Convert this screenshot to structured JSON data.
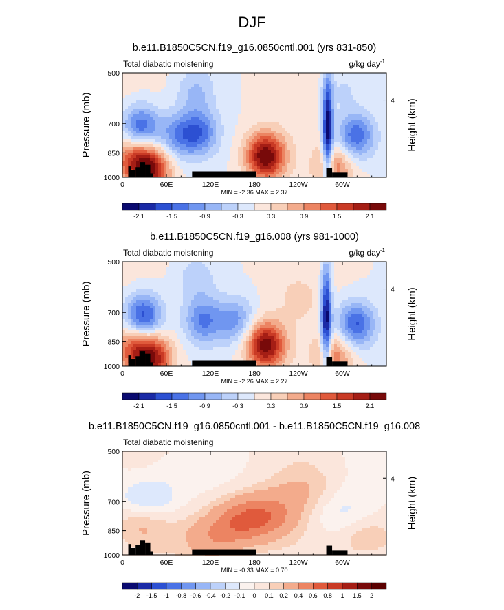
{
  "figure": {
    "title": "DJF"
  },
  "chart_data": [
    {
      "type": "heatmap",
      "title": "b.e11.B1850C5CN.f19_g16.0850cntl.001 (yrs 831-850)",
      "left_string": "Total diabatic moistening",
      "right_string": "g/kg day",
      "right_string_sup": "-1",
      "xlabel": "",
      "ylabel": "Pressure (mb)",
      "ylabel_right": "Height (km)",
      "x_ticks": [
        "0",
        "60E",
        "120E",
        "180",
        "120W",
        "60W"
      ],
      "y_ticks": [
        "500",
        "700",
        "850",
        "1000"
      ],
      "y_right_ticks": [
        "4"
      ],
      "xlim": [
        0,
        360
      ],
      "ylim_mb": [
        1000,
        500
      ],
      "min_max_text": "MIN = -2.36  MAX =  2.37",
      "min": -2.36,
      "max": 2.37,
      "colorbar_labels": [
        "-2.1",
        "-1.5",
        "-0.9",
        "-0.3",
        "0.3",
        "0.9",
        "1.5",
        "2.1"
      ],
      "features": [
        {
          "lon": 25,
          "p": 720,
          "value": -1.6
        },
        {
          "lon": 38,
          "p": 950,
          "value": 2.0
        },
        {
          "lon": 15,
          "p": 880,
          "value": 1.2
        },
        {
          "lon": 105,
          "p": 740,
          "value": -1.3
        },
        {
          "lon": 75,
          "p": 760,
          "value": -1.0
        },
        {
          "lon": 195,
          "p": 870,
          "value": 2.37
        },
        {
          "lon": 280,
          "p": 730,
          "value": -2.36
        },
        {
          "lon": 318,
          "p": 760,
          "value": -1.5
        },
        {
          "lon": 290,
          "p": 930,
          "value": 1.0
        },
        {
          "lon": 100,
          "p": 560,
          "value": -0.6
        },
        {
          "lon": 300,
          "p": 560,
          "value": -0.4
        }
      ]
    },
    {
      "type": "heatmap",
      "title": "b.e11.B1850C5CN.f19_g16.008 (yrs 981-1000)",
      "left_string": "Total diabatic moistening",
      "right_string": "g/kg day",
      "right_string_sup": "-1",
      "xlabel": "",
      "ylabel": "Pressure (mb)",
      "ylabel_right": "Height (km)",
      "x_ticks": [
        "0",
        "60E",
        "120E",
        "180",
        "120W",
        "60W"
      ],
      "y_ticks": [
        "500",
        "700",
        "850",
        "1000"
      ],
      "y_right_ticks": [
        "4"
      ],
      "xlim": [
        0,
        360
      ],
      "ylim_mb": [
        1000,
        500
      ],
      "min_max_text": "MIN = -2.26  MAX =  2.27",
      "min": -2.26,
      "max": 2.27,
      "colorbar_labels": [
        "-2.1",
        "-1.5",
        "-0.9",
        "-0.3",
        "0.3",
        "0.9",
        "1.5",
        "2.1"
      ],
      "features": [
        {
          "lon": 28,
          "p": 720,
          "value": -1.8
        },
        {
          "lon": 40,
          "p": 950,
          "value": 2.0
        },
        {
          "lon": 15,
          "p": 880,
          "value": 1.1
        },
        {
          "lon": 110,
          "p": 740,
          "value": -1.2
        },
        {
          "lon": 155,
          "p": 740,
          "value": -1.0
        },
        {
          "lon": 195,
          "p": 870,
          "value": 2.27
        },
        {
          "lon": 278,
          "p": 730,
          "value": -2.26
        },
        {
          "lon": 318,
          "p": 760,
          "value": -1.6
        },
        {
          "lon": 290,
          "p": 930,
          "value": 1.0
        },
        {
          "lon": 100,
          "p": 560,
          "value": -0.5
        },
        {
          "lon": 240,
          "p": 640,
          "value": 0.3
        }
      ]
    },
    {
      "type": "heatmap",
      "title": "b.e11.B1850C5CN.f19_g16.0850cntl.001 - b.e11.B1850C5CN.f19_g16.008",
      "left_string": "Total diabatic moistening",
      "right_string": "",
      "xlabel": "",
      "ylabel": "Pressure (mb)",
      "ylabel_right": "Height (km)",
      "x_ticks": [
        "0",
        "60E",
        "120E",
        "180",
        "120W",
        "60W"
      ],
      "y_ticks": [
        "500",
        "700",
        "850",
        "1000"
      ],
      "y_right_ticks": [
        "4"
      ],
      "xlim": [
        0,
        360
      ],
      "ylim_mb": [
        1000,
        500
      ],
      "min_max_text": "MIN = -0.33  MAX =  0.70",
      "min": -0.33,
      "max": 0.7,
      "colorbar_labels": [
        "-2",
        "-1.5",
        "-1",
        "-0.8",
        "-0.6",
        "-0.4",
        "-0.2",
        "-0.1",
        "0",
        "0.1",
        "0.2",
        "0.4",
        "0.6",
        "0.8",
        "1",
        "1.5",
        "2"
      ],
      "features": [
        {
          "lon": 35,
          "p": 700,
          "value": -0.33
        },
        {
          "lon": 28,
          "p": 800,
          "value": 0.25
        },
        {
          "lon": 160,
          "p": 800,
          "value": 0.5
        },
        {
          "lon": 200,
          "p": 760,
          "value": 0.4
        },
        {
          "lon": 120,
          "p": 900,
          "value": 0.3
        },
        {
          "lon": 250,
          "p": 640,
          "value": 0.15
        },
        {
          "lon": 300,
          "p": 760,
          "value": -0.15
        },
        {
          "lon": 330,
          "p": 880,
          "value": 0.2
        },
        {
          "lon": 80,
          "p": 560,
          "value": -0.1
        }
      ]
    }
  ],
  "terrain_mask": [
    {
      "lon": [
        8,
        12
      ],
      "p_top": 930
    },
    {
      "lon": [
        12,
        18
      ],
      "p_top": 955
    },
    {
      "lon": [
        18,
        24
      ],
      "p_top": 935
    },
    {
      "lon": [
        24,
        31
      ],
      "p_top": 905
    },
    {
      "lon": [
        31,
        38
      ],
      "p_top": 920
    },
    {
      "lon": [
        38,
        42
      ],
      "p_top": 975
    },
    {
      "lon": [
        95,
        182
      ],
      "p_top": 962
    },
    {
      "lon": [
        278,
        286
      ],
      "p_top": 940
    },
    {
      "lon": [
        286,
        307
      ],
      "p_top": 970
    }
  ],
  "colormap": {
    "colors": [
      "#0a0a70",
      "#1a2aa6",
      "#2c50d2",
      "#4a72e6",
      "#7096f0",
      "#98b6f6",
      "#bcd1fa",
      "#dde8fc",
      "#fbe6dc",
      "#f8cfb8",
      "#f3ab8c",
      "#ec8462",
      "#e05a3c",
      "#c93a25",
      "#a51e15",
      "#780a0a"
    ]
  }
}
